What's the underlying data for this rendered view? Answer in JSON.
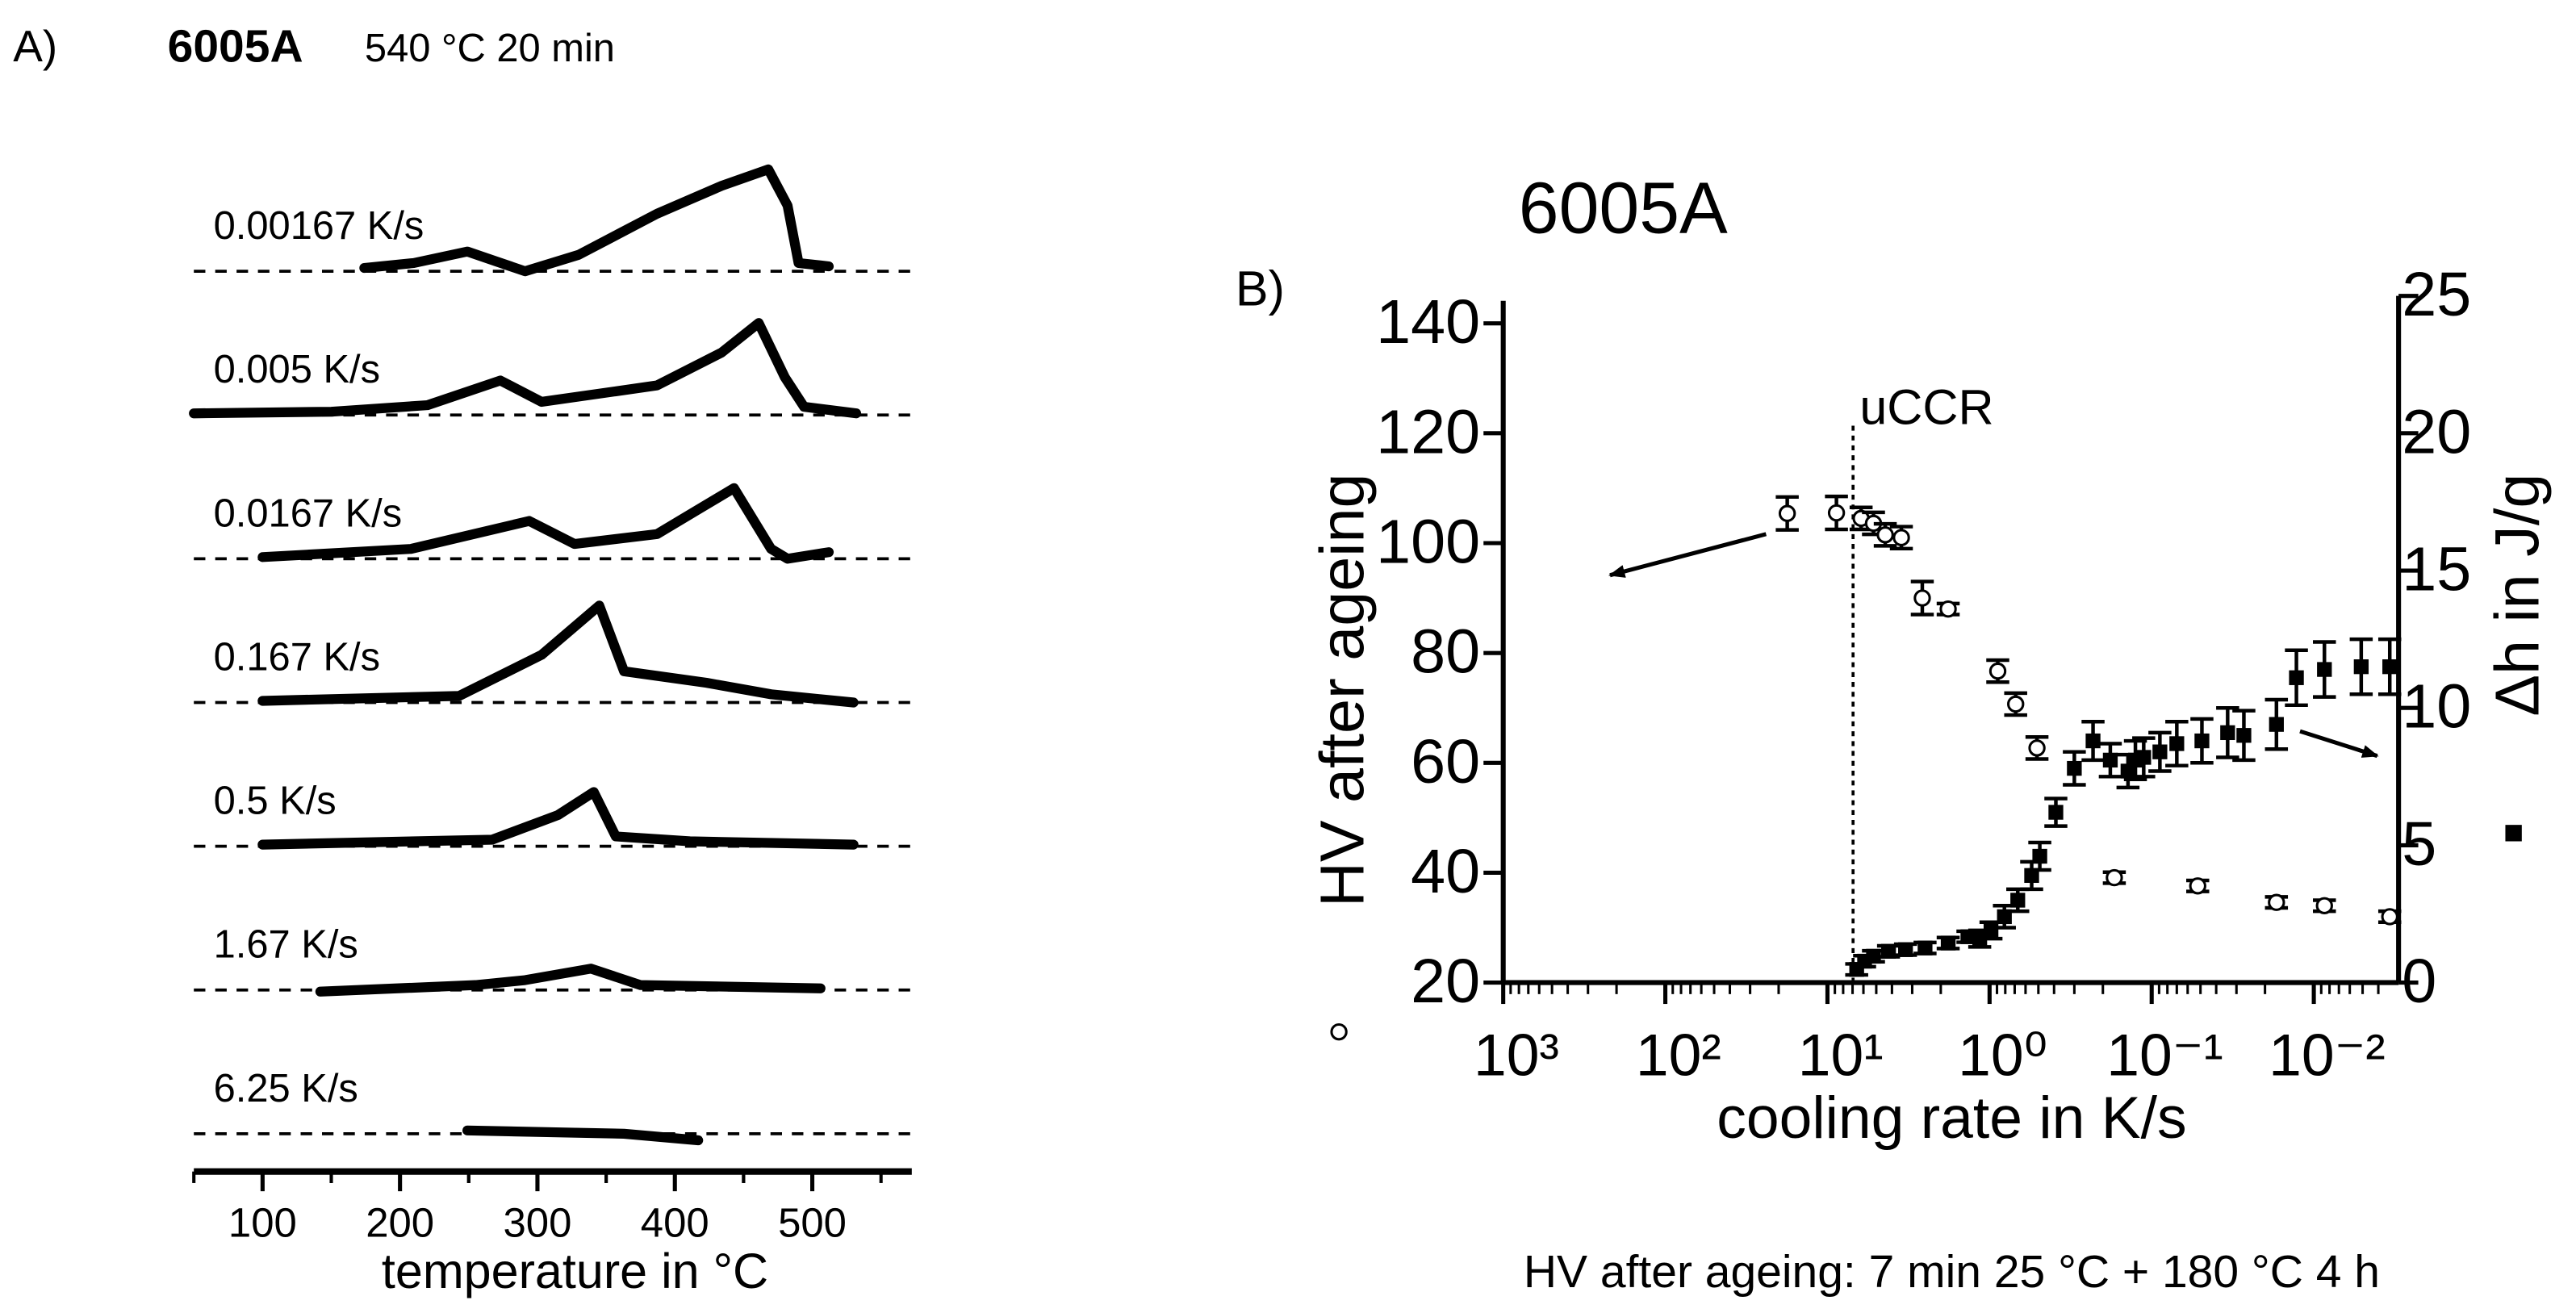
{
  "chart_data": [
    {
      "type": "line",
      "label": "A)",
      "title": "6005A",
      "subtitle": "540 °C  20 min",
      "xlabel": "temperature in °C",
      "xlim": [
        50,
        570
      ],
      "xticks": [
        100,
        200,
        300,
        400,
        500
      ],
      "color": "#000000",
      "series": [
        {
          "name": "0.00167 K/s",
          "x": [
            174,
            210,
            249,
            270,
            291,
            330,
            387,
            434,
            468,
            482,
            490,
            512
          ],
          "values": [
            2,
            5,
            12,
            6,
            0,
            10,
            35,
            52,
            62,
            40,
            5,
            3
          ]
        },
        {
          "name": "0.005 K/s",
          "x": [
            50,
            150,
            220,
            273,
            303,
            387,
            434,
            461,
            480,
            494,
            532
          ],
          "values": [
            1,
            2,
            6,
            21,
            8,
            18,
            38,
            56,
            23,
            5,
            1
          ]
        },
        {
          "name": "0.0167 K/s",
          "x": [
            100,
            208,
            294,
            327,
            387,
            443,
            470,
            482,
            512
          ],
          "values": [
            1,
            6,
            23,
            9,
            15,
            43,
            6,
            0,
            4
          ]
        },
        {
          "name": "0.167 K/s",
          "x": [
            100,
            243,
            303,
            345,
            363,
            423,
            470,
            530
          ],
          "values": [
            1,
            4,
            29,
            59,
            19,
            12,
            5,
            0
          ]
        },
        {
          "name": "0.5 K/s",
          "x": [
            100,
            267,
            315,
            341,
            357,
            411,
            530
          ],
          "values": [
            1,
            4,
            19,
            33,
            6,
            3,
            1
          ]
        },
        {
          "name": "1.67 K/s",
          "x": [
            142,
            255,
            291,
            339,
            375,
            506
          ],
          "values": [
            -1,
            3,
            6,
            13,
            3,
            1
          ]
        },
        {
          "name": "6.25 K/s",
          "x": [
            249,
            363,
            417
          ],
          "values": [
            2,
            0,
            -4
          ]
        }
      ]
    },
    {
      "type": "scatter",
      "label": "B)",
      "title": "6005A",
      "xlabel": "cooling rate in K/s",
      "ylabel": "HV after ageing",
      "y2label": "Δh in J/g",
      "annotation": "uCCR",
      "annotation_x": 6.95,
      "footnote": "HV after ageing: 7 min 25 °C + 180 °C 4 h",
      "xscale": "log",
      "xlim": [
        1000,
        0.003
      ],
      "xticks": [
        {
          "value": 1000,
          "label": "10³"
        },
        {
          "value": 100,
          "label": "10²"
        },
        {
          "value": 10,
          "label": "10¹"
        },
        {
          "value": 1,
          "label": "10⁰"
        },
        {
          "value": 0.1,
          "label": "10⁻¹"
        },
        {
          "value": 0.01,
          "label": "10⁻²"
        }
      ],
      "ylim": [
        20,
        145
      ],
      "yticks": [
        20,
        40,
        60,
        80,
        100,
        120,
        140
      ],
      "y2lim": [
        0,
        25
      ],
      "y2ticks": [
        0,
        5,
        10,
        15,
        20,
        25
      ],
      "series": [
        {
          "marker": "open-circle",
          "color": "#000000",
          "x": [
            17.7,
            8.8,
            6.2,
            5.2,
            4.4,
            3.5,
            2.6,
            1.8,
            0.89,
            0.69,
            0.51,
            0.17,
            0.052,
            0.017,
            0.0086,
            0.0034
          ],
          "values": [
            105.4,
            105.5,
            104.5,
            103.6,
            101.5,
            101,
            90,
            88,
            76.7,
            70.7,
            62.7,
            39.1,
            37.6,
            34.6,
            34,
            32
          ],
          "errors": [
            3,
            3,
            2,
            2,
            2,
            2,
            3,
            1,
            2,
            2,
            2,
            1,
            1,
            1,
            1,
            1
          ]
        },
        {
          "marker": "filled-square",
          "color": "#000000",
          "axis": "y2",
          "x": [
            6.6,
            5.9,
            5.2,
            4.2,
            3.3,
            2.5,
            1.8,
            1.36,
            1.15,
            0.98,
            0.81,
            0.67,
            0.55,
            0.49,
            0.39,
            0.3,
            0.23,
            0.18,
            0.14,
            0.126,
            0.112,
            0.089,
            0.07,
            0.049,
            0.034,
            0.027,
            0.017,
            0.0128,
            0.0086,
            0.0051,
            0.0034
          ],
          "values": [
            0.48,
            0.78,
            0.96,
            1.14,
            1.2,
            1.26,
            1.44,
            1.67,
            1.6,
            1.9,
            2.4,
            3.0,
            3.9,
            4.6,
            6.2,
            7.8,
            8.8,
            8.1,
            7.7,
            8.1,
            8.2,
            8.4,
            8.7,
            8.8,
            9.1,
            9.0,
            9.4,
            11.1,
            11.4,
            11.5,
            11.5
          ],
          "errors": [
            0.2,
            0.2,
            0.2,
            0.2,
            0.2,
            0.2,
            0.2,
            0.2,
            0.3,
            0.3,
            0.4,
            0.4,
            0.5,
            0.5,
            0.5,
            0.6,
            0.7,
            0.6,
            0.6,
            0.7,
            0.7,
            0.7,
            0.8,
            0.8,
            0.9,
            0.9,
            0.9,
            1.0,
            1.0,
            1.0,
            1.0
          ]
        }
      ]
    }
  ]
}
